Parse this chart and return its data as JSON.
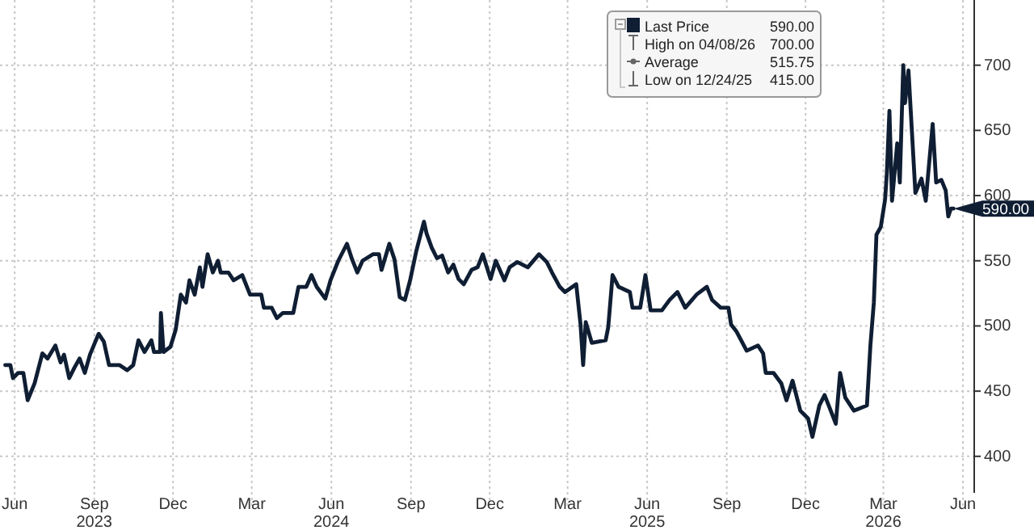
{
  "chart_data": {
    "type": "line",
    "legend": "top right",
    "grid": true,
    "line_style": "solid",
    "marker": "none",
    "xlim": [
      "2023-05-30",
      "2026-06-29"
    ],
    "ylim": [
      372,
      750
    ],
    "xticks": [
      {
        "value": "2023-06-16",
        "label": "Jun"
      },
      {
        "value": "2023-09-16",
        "label": "Sep\n2023"
      },
      {
        "value": "2023-12-16",
        "label": "Dec"
      },
      {
        "value": "2024-03-16",
        "label": "Mar"
      },
      {
        "value": "2024-06-16",
        "label": "Jun\n2024"
      },
      {
        "value": "2024-09-16",
        "label": "Sep"
      },
      {
        "value": "2024-12-16",
        "label": "Dec"
      },
      {
        "value": "2025-03-16",
        "label": "Mar"
      },
      {
        "value": "2025-06-16",
        "label": "Jun\n2025"
      },
      {
        "value": "2025-09-16",
        "label": "Sep"
      },
      {
        "value": "2025-12-16",
        "label": "Dec"
      },
      {
        "value": "2026-03-16",
        "label": "Mar\n2026"
      },
      {
        "value": "2026-06-16",
        "label": "Jun"
      }
    ],
    "yticks": [
      400,
      450,
      500,
      550,
      600,
      650,
      700
    ],
    "annotations": [
      {
        "text": "590.00",
        "x": "2026-06-05",
        "y": 590
      },
      "High on 04/08/26 700.00",
      "Average 515.75",
      "Low on 12/24/25 415.00"
    ],
    "x": [
      "2023-06-05",
      "2023-06-11",
      "2023-06-14",
      "2023-06-20",
      "2023-06-26",
      "2023-07-01",
      "2023-07-09",
      "2023-07-18",
      "2023-07-24",
      "2023-08-02",
      "2023-08-08",
      "2023-08-12",
      "2023-08-18",
      "2023-08-24",
      "2023-08-30",
      "2023-09-05",
      "2023-09-11",
      "2023-09-21",
      "2023-09-27",
      "2023-10-03",
      "2023-10-15",
      "2023-10-24",
      "2023-10-31",
      "2023-11-06",
      "2023-11-13",
      "2023-11-21",
      "2023-11-24",
      "2023-12-01",
      "2023-12-02",
      "2023-12-05",
      "2023-12-13",
      "2023-12-19",
      "2023-12-25",
      "2023-12-31",
      "2024-01-04",
      "2024-01-10",
      "2024-01-16",
      "2024-01-19",
      "2024-01-25",
      "2024-01-31",
      "2024-02-06",
      "2024-02-09",
      "2024-02-18",
      "2024-02-24",
      "2024-03-05",
      "2024-03-14",
      "2024-03-27",
      "2024-03-30",
      "2024-04-08",
      "2024-04-14",
      "2024-04-21",
      "2024-05-03",
      "2024-05-09",
      "2024-05-18",
      "2024-05-24",
      "2024-05-30",
      "2024-06-09",
      "2024-06-15",
      "2024-06-24",
      "2024-07-04",
      "2024-07-10",
      "2024-07-16",
      "2024-07-22",
      "2024-08-03",
      "2024-08-10",
      "2024-08-13",
      "2024-08-22",
      "2024-08-28",
      "2024-09-03",
      "2024-09-09",
      "2024-09-15",
      "2024-09-22",
      "2024-10-01",
      "2024-10-04",
      "2024-10-10",
      "2024-10-16",
      "2024-10-22",
      "2024-10-29",
      "2024-11-04",
      "2024-11-10",
      "2024-11-16",
      "2024-11-25",
      "2024-12-02",
      "2024-12-08",
      "2024-12-17",
      "2024-12-23",
      "2025-01-02",
      "2025-01-08",
      "2025-01-17",
      "2025-01-29",
      "2025-02-11",
      "2025-02-20",
      "2025-02-26",
      "2025-03-07",
      "2025-03-13",
      "2025-03-26",
      "2025-03-31",
      "2025-04-03",
      "2025-04-06",
      "2025-04-13",
      "2025-04-29",
      "2025-05-02",
      "2025-05-07",
      "2025-05-14",
      "2025-05-27",
      "2025-05-30",
      "2025-06-08",
      "2025-06-14",
      "2025-06-20",
      "2025-07-03",
      "2025-07-12",
      "2025-07-21",
      "2025-07-30",
      "2025-08-12",
      "2025-08-24",
      "2025-08-30",
      "2025-09-09",
      "2025-09-18",
      "2025-09-21",
      "2025-09-27",
      "2025-10-09",
      "2025-10-22",
      "2025-10-28",
      "2025-10-31",
      "2025-11-09",
      "2025-11-18",
      "2025-11-24",
      "2025-12-01",
      "2025-12-10",
      "2025-12-19",
      "2025-12-24",
      "2026-01-01",
      "2026-01-07",
      "2026-01-13",
      "2026-01-20",
      "2026-01-25",
      "2026-01-31",
      "2026-02-10",
      "2026-02-25",
      "2026-03-01",
      "2026-03-05",
      "2026-03-08",
      "2026-03-13",
      "2026-03-18",
      "2026-03-20",
      "2026-03-23",
      "2026-03-26",
      "2026-04-01",
      "2026-04-04",
      "2026-04-08",
      "2026-04-10",
      "2026-04-14",
      "2026-04-22",
      "2026-04-29",
      "2026-05-04",
      "2026-05-12",
      "2026-05-16",
      "2026-05-22",
      "2026-05-27",
      "2026-05-30",
      "2026-06-02",
      "2026-06-05"
    ],
    "series": [
      {
        "name": "Last Price",
        "color": "#0f1e33",
        "values": [
          470,
          470,
          460,
          464,
          464,
          443,
          456,
          479,
          475,
          485,
          472,
          478,
          460,
          468,
          475,
          464,
          478,
          494,
          488,
          470,
          470,
          466,
          470,
          489,
          480,
          489,
          480,
          480,
          510,
          480,
          484,
          497,
          524,
          518,
          535,
          524,
          545,
          530,
          555,
          541,
          550,
          541,
          541,
          535,
          539,
          524,
          524,
          514,
          514,
          506,
          510,
          510,
          530,
          530,
          539,
          530,
          521,
          535,
          550,
          563,
          551,
          541,
          550,
          555,
          555,
          543,
          563,
          551,
          522,
          520,
          535,
          557,
          580,
          571,
          560,
          552,
          554,
          541,
          547,
          536,
          532,
          543,
          545,
          555,
          536,
          550,
          535,
          545,
          549,
          545,
          555,
          549,
          541,
          530,
          526,
          532,
          501,
          470,
          503,
          487,
          489,
          499,
          539,
          530,
          526,
          514,
          514,
          539,
          512,
          512,
          520,
          526,
          514,
          524,
          530,
          520,
          514,
          514,
          501,
          496,
          481,
          485,
          479,
          464,
          464,
          456,
          443,
          458,
          435,
          429,
          415,
          439,
          447,
          437,
          425,
          464,
          445,
          435,
          439,
          485,
          518,
          570,
          576,
          597,
          617,
          665,
          596,
          640,
          610,
          700,
          671,
          696,
          602,
          613,
          596,
          655,
          610,
          612,
          604,
          584,
          590,
          590
        ]
      }
    ]
  }
}
